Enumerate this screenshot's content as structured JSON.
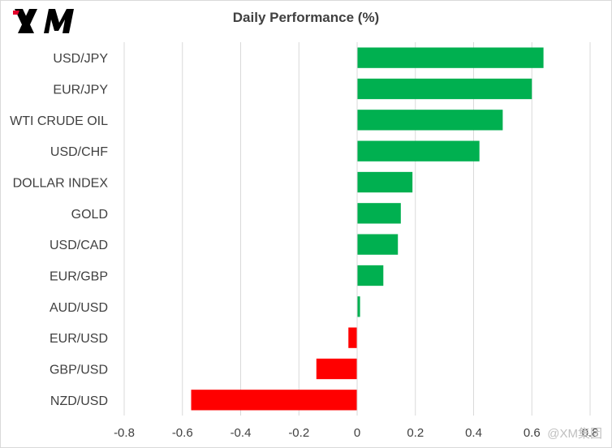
{
  "header": {
    "logo_text": "XM",
    "title": "Daily Performance (%)"
  },
  "watermark": {
    "text": "@XM集团"
  },
  "colors": {
    "positive": "#00b050",
    "negative": "#ff0000",
    "grid": "#d9d9d9",
    "axis_text": "#404040"
  },
  "chart_data": {
    "type": "bar",
    "orientation": "horizontal",
    "title": "Daily Performance (%)",
    "categories": [
      "USD/JPY",
      "EUR/JPY",
      "WTI CRUDE OIL",
      "USD/CHF",
      "DOLLAR INDEX",
      "GOLD",
      "USD/CAD",
      "EUR/GBP",
      "AUD/USD",
      "EUR/USD",
      "GBP/USD",
      "NZD/USD"
    ],
    "values": [
      0.64,
      0.6,
      0.5,
      0.42,
      0.19,
      0.15,
      0.14,
      0.09,
      0.01,
      -0.03,
      -0.14,
      -0.57
    ],
    "xlim": [
      -0.8,
      0.8
    ],
    "xticks": [
      -0.8,
      -0.6,
      -0.4,
      -0.2,
      0,
      0.2,
      0.4,
      0.6,
      0.8
    ],
    "xtick_labels": [
      "-0.8",
      "-0.6",
      "-0.4",
      "-0.2",
      "0",
      "0.2",
      "0.4",
      "0.6",
      "0.8"
    ],
    "grid": true,
    "legend": "none"
  }
}
